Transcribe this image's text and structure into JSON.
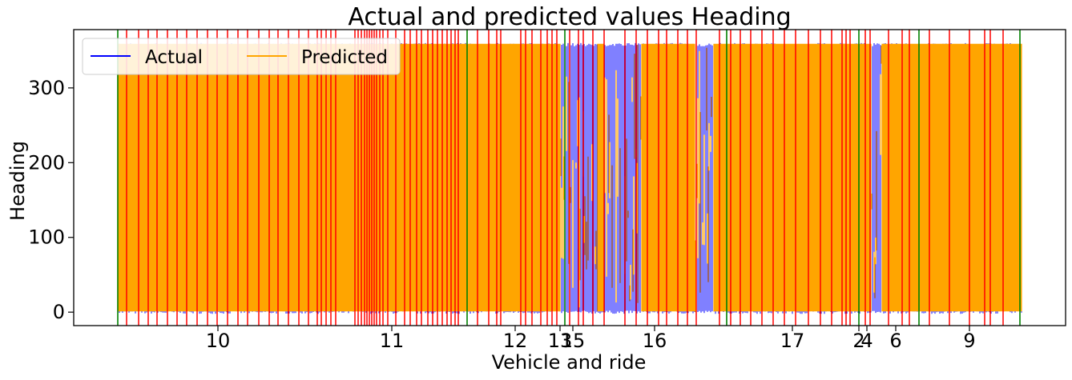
{
  "chart_data": {
    "type": "line",
    "title": "Actual and predicted values Heading",
    "xlabel": "Vehicle and ride",
    "ylabel": "Heading",
    "ylim": [
      -18,
      378
    ],
    "y_ticks": [
      0,
      100,
      200,
      300
    ],
    "x_tick_labels": [
      "10",
      "11",
      "12",
      "13",
      "15",
      "16",
      "17",
      "2",
      "4",
      "6",
      "9"
    ],
    "legend": {
      "placement": "upper-left",
      "entries": [
        {
          "label": "Actual",
          "color": "#0000ff"
        },
        {
          "label": "Predicted",
          "color": "#ffa500"
        }
      ]
    },
    "series": [
      {
        "name": "Actual",
        "color": "#0000ff",
        "min": 0,
        "max": 360
      },
      {
        "name": "Predicted",
        "color": "#ffa500",
        "min": 0,
        "max": 360
      }
    ],
    "grid": false
  },
  "colors": {
    "vehicle_boundary": "#008000",
    "ride_boundary": "#ff0000"
  }
}
